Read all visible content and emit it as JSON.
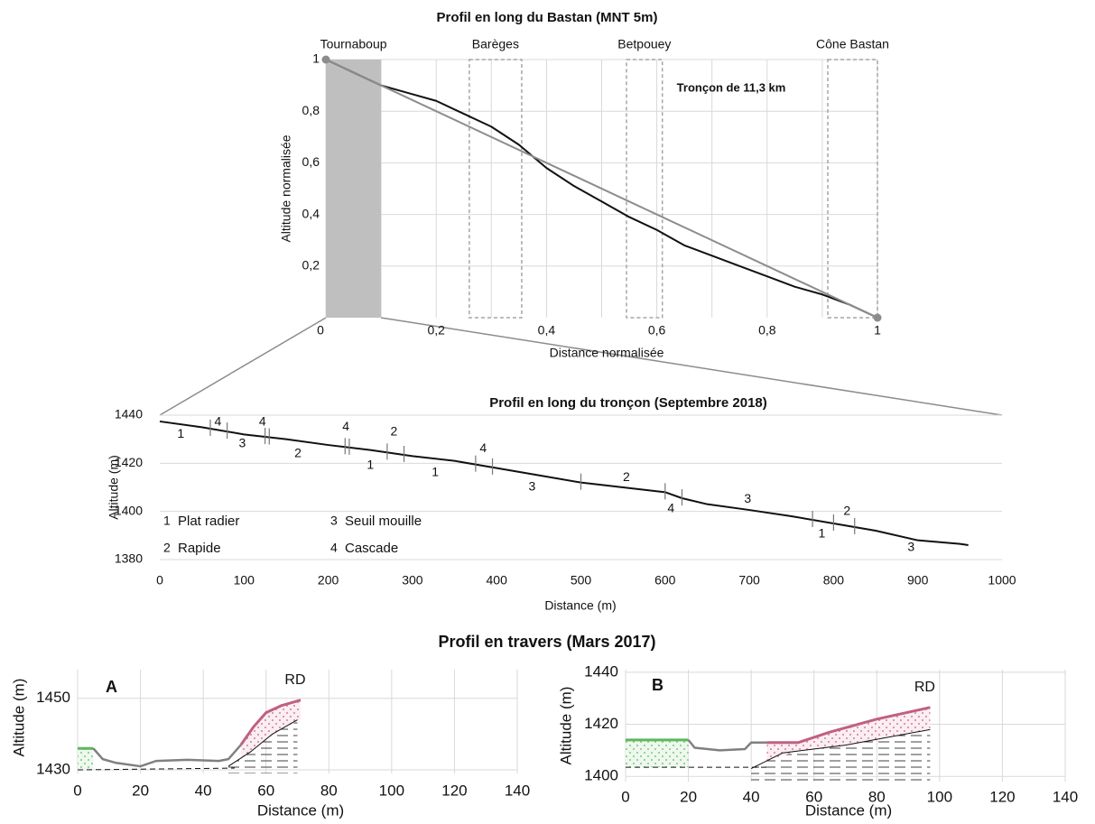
{
  "chart_data": [
    {
      "type": "line",
      "title": "Profil en long du Bastan (MNT 5m)",
      "xlabel": "Distance normalisée",
      "ylabel": "Altitude normalisée",
      "xlim": [
        0,
        1
      ],
      "ylim": [
        0,
        1
      ],
      "xticks": [
        {
          "value": 0,
          "label": "0"
        },
        {
          "value": 0.2,
          "label": "0,2"
        },
        {
          "value": 0.4,
          "label": "0,4"
        },
        {
          "value": 0.6,
          "label": "0,6"
        },
        {
          "value": 0.8,
          "label": "0,8"
        },
        {
          "value": 1,
          "label": "1"
        }
      ],
      "yticks": [
        {
          "value": 0.2,
          "label": "0,2"
        },
        {
          "value": 0.4,
          "label": "0,4"
        },
        {
          "value": 0.6,
          "label": "0,6"
        },
        {
          "value": 0.8,
          "label": "0,8"
        },
        {
          "value": 1,
          "label": "1"
        }
      ],
      "minor_xgrid": [
        0.1,
        0.3,
        0.5,
        0.7,
        0.9
      ],
      "grid": "both",
      "regions": [
        {
          "label": "Tournaboup",
          "x0": 0,
          "x1": 0.1,
          "style": "shaded"
        },
        {
          "label": "Barèges",
          "x0": 0.26,
          "x1": 0.355,
          "style": "dashed"
        },
        {
          "label": "Betpouey",
          "x0": 0.545,
          "x1": 0.61,
          "style": "dashed"
        },
        {
          "label": "Cône Bastan",
          "x0": 0.91,
          "x1": 1,
          "style": "dashed"
        }
      ],
      "annotation": "Tronçon de 11,3 km",
      "series": [
        {
          "color": "#111111",
          "width": 2,
          "x": [
            0,
            0.05,
            0.1,
            0.15,
            0.2,
            0.25,
            0.3,
            0.35,
            0.4,
            0.45,
            0.5,
            0.55,
            0.6,
            0.65,
            0.7,
            0.75,
            0.8,
            0.85,
            0.9,
            0.95,
            1
          ],
          "values": [
            1,
            0.95,
            0.9,
            0.87,
            0.84,
            0.79,
            0.74,
            0.67,
            0.58,
            0.51,
            0.45,
            0.39,
            0.34,
            0.28,
            0.24,
            0.2,
            0.16,
            0.12,
            0.09,
            0.05,
            0
          ]
        },
        {
          "color": "#8c8c8c",
          "width": 2,
          "markers": "ends",
          "x": [
            0,
            1
          ],
          "values": [
            1,
            0
          ]
        }
      ]
    },
    {
      "type": "line",
      "title": "Profil en long du tronçon (Septembre 2018)",
      "xlabel": "Distance (m)",
      "ylabel": "Altitude (m)",
      "xlim": [
        0,
        1000
      ],
      "ylim": [
        1380,
        1440
      ],
      "xticks": [
        0,
        100,
        200,
        300,
        400,
        500,
        600,
        700,
        800,
        900,
        1000
      ],
      "yticks": [
        1380,
        1400,
        1420,
        1440
      ],
      "grid": "y",
      "series": [
        {
          "color": "#111111",
          "width": 2,
          "x": [
            0,
            50,
            100,
            150,
            200,
            250,
            300,
            350,
            400,
            450,
            500,
            550,
            600,
            620,
            650,
            700,
            750,
            800,
            850,
            900,
            950,
            960
          ],
          "values": [
            1437.4,
            1435,
            1432,
            1430,
            1427.6,
            1425.5,
            1423,
            1421,
            1418,
            1415,
            1412,
            1410,
            1408,
            1405.5,
            1403,
            1400.6,
            1398,
            1395,
            1392,
            1388,
            1386.5,
            1386
          ]
        }
      ],
      "boundaries": [
        60,
        80,
        125,
        130,
        220,
        225,
        270,
        290,
        375,
        395,
        500,
        600,
        620,
        775,
        800,
        825
      ],
      "segment_labels": [
        {
          "label": "1",
          "x": 25,
          "y": 1432
        },
        {
          "label": "4",
          "x": 69,
          "y": 1437
        },
        {
          "label": "3",
          "x": 98,
          "y": 1428
        },
        {
          "label": "4",
          "x": 122,
          "y": 1437
        },
        {
          "label": "2",
          "x": 164,
          "y": 1424
        },
        {
          "label": "4",
          "x": 221,
          "y": 1435
        },
        {
          "label": "1",
          "x": 250,
          "y": 1419
        },
        {
          "label": "2",
          "x": 278,
          "y": 1433
        },
        {
          "label": "1",
          "x": 327,
          "y": 1416
        },
        {
          "label": "4",
          "x": 384,
          "y": 1426
        },
        {
          "label": "3",
          "x": 442,
          "y": 1410
        },
        {
          "label": "2",
          "x": 554,
          "y": 1414
        },
        {
          "label": "4",
          "x": 607,
          "y": 1401
        },
        {
          "label": "3",
          "x": 698,
          "y": 1405
        },
        {
          "label": "1",
          "x": 786,
          "y": 1390.5
        },
        {
          "label": "2",
          "x": 816,
          "y": 1400
        },
        {
          "label": "3",
          "x": 892,
          "y": 1385
        }
      ],
      "legend": [
        {
          "key": "1",
          "label": "Plat radier"
        },
        {
          "key": "2",
          "label": "Rapide"
        },
        {
          "key": "3",
          "label": "Seuil mouille"
        },
        {
          "key": "4",
          "label": "Cascade"
        }
      ],
      "legend_position": "lower left"
    },
    {
      "type": "line",
      "title": "Profil en travers (Mars 2017)",
      "panel": "A",
      "annotation": "RD",
      "xlabel": "Distance (m)",
      "ylabel": "Altitude (m)",
      "xlim": [
        0,
        140
      ],
      "ylim": [
        1429,
        1458
      ],
      "xticks": [
        0,
        20,
        40,
        60,
        80,
        100,
        120,
        140
      ],
      "yticks": [
        1430,
        1450
      ],
      "grid": "both",
      "series": [
        {
          "color": "#111111",
          "width": 1,
          "dash": true,
          "x": [
            0,
            50
          ],
          "values": [
            1430,
            1430.5
          ]
        },
        {
          "color": "#111111",
          "width": 1,
          "fill": "hatch",
          "x": [
            48,
            55,
            62,
            70
          ],
          "values": [
            1431,
            1435,
            1440,
            1444
          ]
        },
        {
          "color": "#5cb85c",
          "width": 3,
          "fill": "green-dots",
          "fill_to": 0,
          "x": [
            0,
            5
          ],
          "values": [
            1436,
            1436
          ]
        },
        {
          "color": "#c06080",
          "width": 3,
          "fill": "pink-dots",
          "fill_to": 1,
          "x": [
            52,
            56,
            60,
            65,
            71
          ],
          "values": [
            1437,
            1442,
            1446,
            1448,
            1449.5
          ]
        },
        {
          "color": "#808080",
          "width": 2.5,
          "x": [
            5,
            8,
            12,
            20,
            25,
            35,
            45,
            48,
            52
          ],
          "values": [
            1436,
            1433,
            1432,
            1431,
            1432.5,
            1432.8,
            1432.5,
            1433,
            1437
          ]
        }
      ]
    },
    {
      "type": "line",
      "panel": "B",
      "annotation": "RD",
      "xlabel": "Distance (m)",
      "ylabel": "Altitude (m)",
      "xlim": [
        0,
        140
      ],
      "ylim": [
        1398,
        1441
      ],
      "xticks": [
        0,
        20,
        40,
        60,
        80,
        100,
        120,
        140
      ],
      "yticks": [
        1400,
        1420,
        1440
      ],
      "grid": "both",
      "series": [
        {
          "color": "#111111",
          "width": 1,
          "dash": true,
          "x": [
            0,
            45
          ],
          "values": [
            1403.5,
            1403.5
          ]
        },
        {
          "color": "#111111",
          "width": 1,
          "fill": "hatch",
          "x": [
            40,
            50,
            70,
            97
          ],
          "values": [
            1403,
            1409,
            1412,
            1418
          ]
        },
        {
          "color": "#5cb85c",
          "width": 3,
          "fill": "green-dots",
          "fill_to": 0,
          "x": [
            0,
            20
          ],
          "values": [
            1414,
            1414
          ]
        },
        {
          "color": "#c06080",
          "width": 3,
          "fill": "pink-dots",
          "fill_to": 1,
          "x": [
            45,
            55,
            65,
            80,
            97
          ],
          "values": [
            1413,
            1413,
            1417,
            1422,
            1426.5
          ]
        },
        {
          "color": "#808080",
          "width": 2.5,
          "x": [
            20,
            22,
            30,
            38,
            40,
            45
          ],
          "values": [
            1414,
            1411,
            1410,
            1410.5,
            1413,
            1413
          ]
        }
      ]
    }
  ]
}
